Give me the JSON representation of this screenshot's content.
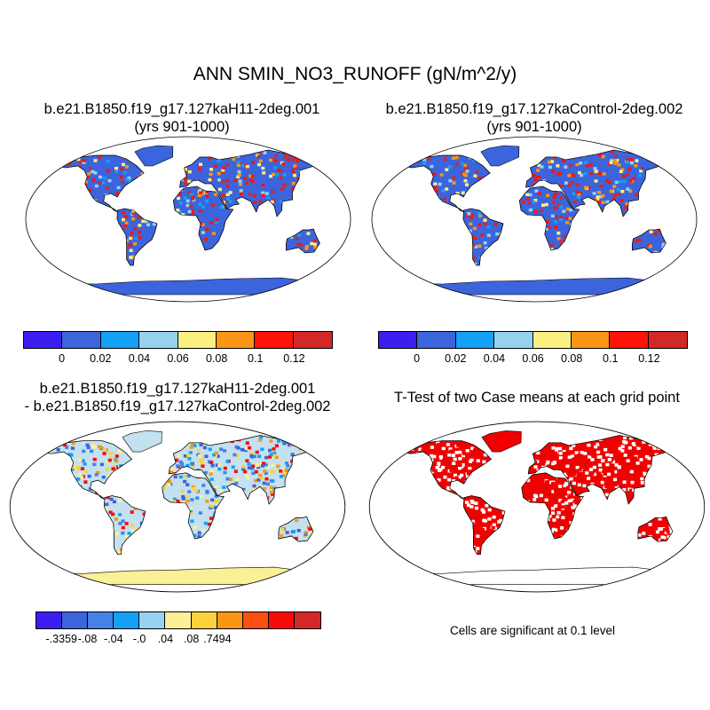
{
  "title": "ANN SMIN_NO3_RUNOFF (gN/m^2/y)",
  "panels": [
    {
      "id": "case1",
      "title_line1": "b.e21.B1850.f19_g17.127kaH11-2deg.001",
      "title_line2": "(yrs 901-1000)"
    },
    {
      "id": "case2",
      "title_line1": "b.e21.B1850.f19_g17.127kaControl-2deg.002",
      "title_line2": "(yrs 901-1000)"
    },
    {
      "id": "diff",
      "title_line1": "b.e21.B1850.f19_g17.127kaH11-2deg.001",
      "title_line2": "- b.e21.B1850.f19_g17.127kaControl-2deg.002"
    },
    {
      "id": "ttest",
      "title_line1": "T-Test of two Case means at each grid point"
    }
  ],
  "colorbar_abs": {
    "labels": [
      "0",
      "0.02",
      "0.04",
      "0.06",
      "0.08",
      "0.1",
      "0.12"
    ],
    "colors": [
      "#3c1ef0",
      "#3c64dc",
      "#14a0f5",
      "#96d2f0",
      "#faf082",
      "#fa9614",
      "#fa140a",
      "#d22828"
    ]
  },
  "colorbar_diff": {
    "labels": [
      "-.3359",
      "-.08",
      "-.04",
      "-.0",
      ".04",
      ".08",
      ".7494"
    ],
    "colors": [
      "#3c1ef0",
      "#3c64dc",
      "#4682e6",
      "#14a0f5",
      "#96d2f0",
      "#faf096",
      "#fad23c",
      "#fa9614",
      "#fa5014",
      "#fa0a0a",
      "#d22828"
    ]
  },
  "significance_note": "Cells are significant at 0.1 level",
  "colors": {
    "land_abs": "#3c64dc",
    "land_diff": "#c3e1f0",
    "antarctic_diff": "#faf096",
    "significant": "#f00000",
    "coast": "#000000"
  }
}
